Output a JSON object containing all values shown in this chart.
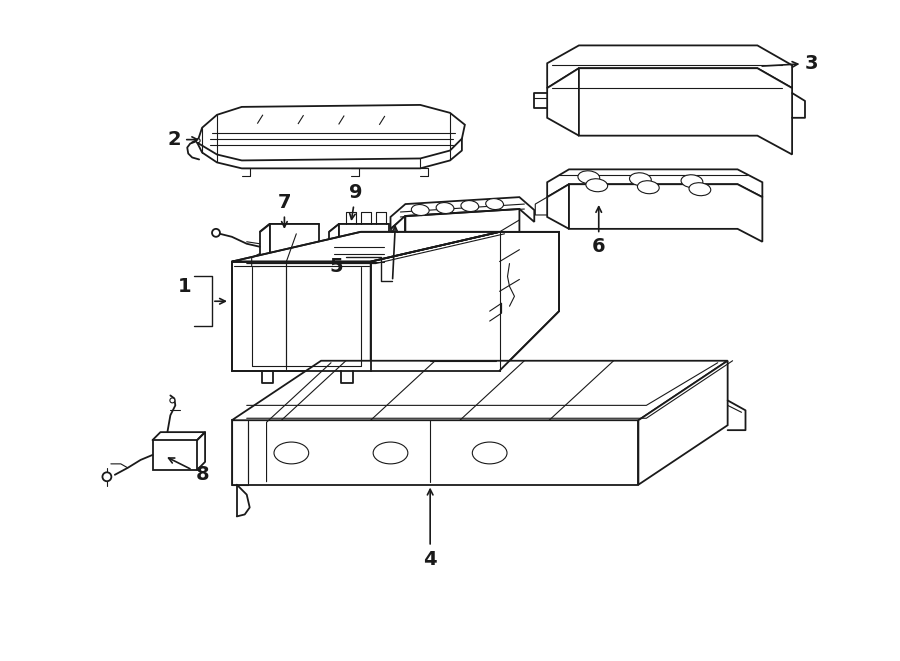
{
  "title": "",
  "bg_color": "#ffffff",
  "line_color": "#1a1a1a",
  "fig_width": 9.0,
  "fig_height": 6.61,
  "dpi": 100,
  "components": {
    "layout": "isometric_exploded",
    "items": [
      "1",
      "2",
      "3",
      "4",
      "5",
      "6",
      "7",
      "8",
      "9"
    ]
  }
}
